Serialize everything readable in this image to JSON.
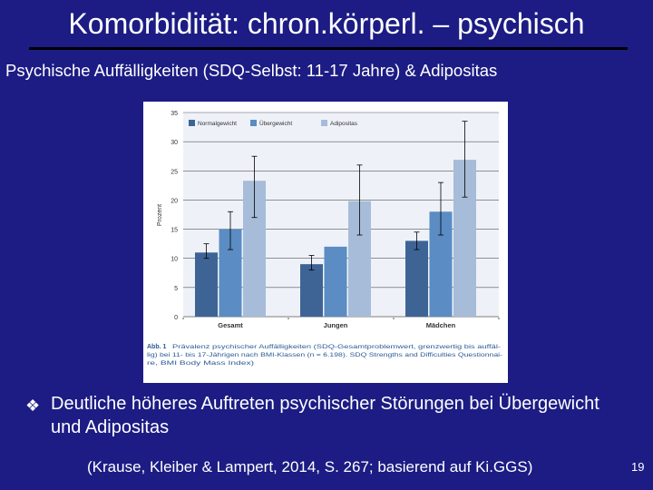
{
  "slide": {
    "title": "Komorbidität: chron.körperl. – psychisch",
    "subtitle": "Psychische Auffälligkeiten (SDQ-Selbst: 11-17 Jahre) & Adipositas",
    "bullet_mark": "❖",
    "bullet_text": "Deutliche höheres Auftreten psychischer Störungen bei Übergewicht und Adipositas",
    "source": "(Krause, Kleiber & Lampert, 2014, S. 267; basierend auf Ki.GGS)",
    "page_number": "19"
  },
  "figure": {
    "caption_label": "Abb. 1",
    "caption_lines": [
      "Prävalenz psychischer Auffälligkeiten (SDQ-Gesamtproblemwert, grenzwertig bis auffäl-",
      "lig) bei 11- bis 17-Jährigen nach BMI-Klassen (n = 6.198). SDQ Strengths and Difficulties Questionnai-",
      "re, BMI Body Mass Index)"
    ]
  },
  "chart_data": {
    "type": "bar",
    "ylabel": "Prozent",
    "ylim": [
      0,
      35
    ],
    "yticks": [
      0,
      5,
      10,
      15,
      20,
      25,
      30,
      35
    ],
    "grid": true,
    "legend_position": "top-left",
    "categories": [
      "Gesamt",
      "Jungen",
      "Mädchen"
    ],
    "series": [
      {
        "name": "Normalgewicht",
        "color": "#3e6496",
        "values": [
          11,
          9,
          13
        ],
        "error": [
          [
            10,
            12.5
          ],
          [
            8,
            10.5
          ],
          [
            11.5,
            14.5
          ]
        ]
      },
      {
        "name": "Übergewicht",
        "color": "#5b8cc4",
        "values": [
          15,
          12,
          18
        ],
        "error": [
          [
            11.5,
            18
          ],
          [
            12,
            12
          ],
          [
            14,
            23
          ]
        ]
      },
      {
        "name": "Adipositas",
        "color": "#a6bcd8",
        "values": [
          23.3,
          19.8,
          26.9
        ],
        "error": [
          [
            17,
            27.5
          ],
          [
            14,
            26
          ],
          [
            20.5,
            33.5
          ]
        ]
      }
    ]
  }
}
